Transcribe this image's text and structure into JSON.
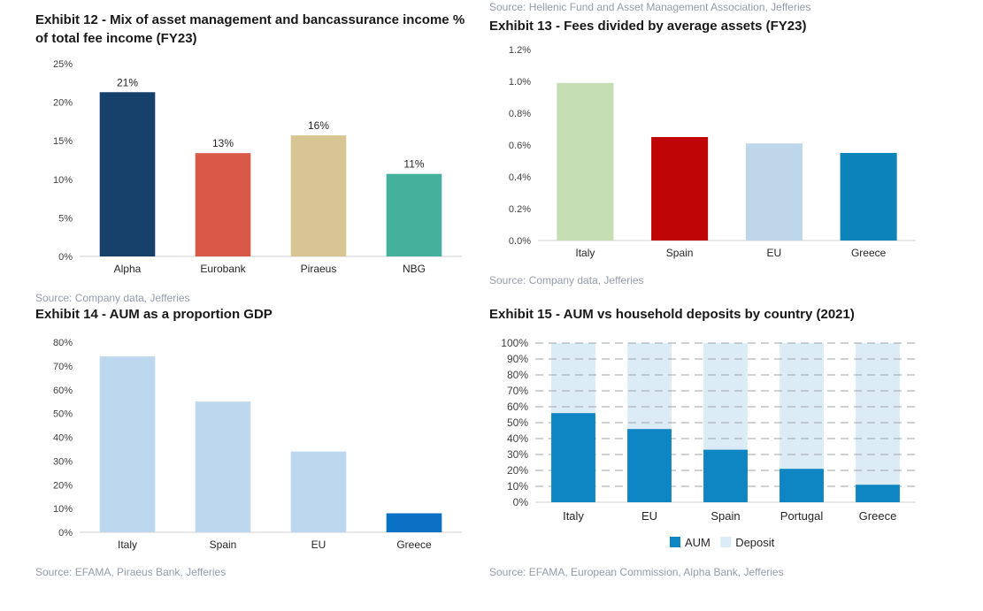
{
  "page": {
    "ex13_source_above": "Source: Hellenic Fund and Asset Management Association, Jefferies"
  },
  "chart_data": [
    {
      "id": "ex12",
      "type": "bar",
      "title": "Exhibit 12 - Mix of asset management and bancassurance income % of total fee income (FY23)",
      "source": "Source: Company data, Jefferies",
      "categories": [
        "Alpha",
        "Eurobank",
        "Piraeus",
        "NBG"
      ],
      "values": [
        21.3,
        13.4,
        15.7,
        10.7
      ],
      "value_labels": [
        "21%",
        "13%",
        "16%",
        "11%"
      ],
      "bar_colors": [
        "#17406B",
        "#D95848",
        "#D7C693",
        "#44B19C"
      ],
      "ylim": [
        0,
        25
      ],
      "yticks": [
        0,
        5,
        10,
        15,
        20,
        25
      ],
      "ytick_labels": [
        "0%",
        "5%",
        "10%",
        "15%",
        "20%",
        "25%"
      ],
      "gridlines": false,
      "legend_position": "none"
    },
    {
      "id": "ex13",
      "type": "bar",
      "title": "Exhibit 13 - Fees divided by average assets (FY23)",
      "source_above": "Source: Hellenic Fund and Asset Management Association, Jefferies",
      "source": "Source: Company data, Jefferies",
      "categories": [
        "Italy",
        "Spain",
        "EU",
        "Greece"
      ],
      "values": [
        0.99,
        0.65,
        0.61,
        0.55
      ],
      "bar_colors": [
        "#C5DEB3",
        "#C00507",
        "#BDD6EA",
        "#0C84BA"
      ],
      "ylim": [
        0,
        1.2
      ],
      "yticks": [
        0,
        0.2,
        0.4,
        0.6,
        0.8,
        1.0,
        1.2
      ],
      "ytick_labels": [
        "0.0%",
        "0.2%",
        "0.4%",
        "0.6%",
        "0.8%",
        "1.0%",
        "1.2%"
      ],
      "gridlines": false,
      "legend_position": "none"
    },
    {
      "id": "ex14",
      "type": "bar",
      "title": "Exhibit 14 - AUM as a proportion GDP",
      "source": "Source: EFAMA, Piraeus Bank, Jefferies",
      "categories": [
        "Italy",
        "Spain",
        "EU",
        "Greece"
      ],
      "values": [
        74,
        55,
        34,
        8
      ],
      "bar_colors": [
        "#BDD7EE",
        "#BDD7EE",
        "#BDD7EE",
        "#0A72C4"
      ],
      "ylim": [
        0,
        80
      ],
      "yticks": [
        0,
        10,
        20,
        30,
        40,
        50,
        60,
        70,
        80
      ],
      "ytick_labels": [
        "0%",
        "10%",
        "20%",
        "30%",
        "40%",
        "50%",
        "60%",
        "70%",
        "80%"
      ],
      "gridlines": false,
      "legend_position": "none"
    },
    {
      "id": "ex15",
      "type": "bar",
      "stacked": true,
      "title": "Exhibit 15 - AUM vs household deposits by country (2021)",
      "source": "Source: EFAMA, European Commission, Alpha Bank, Jefferies",
      "categories": [
        "Italy",
        "EU",
        "Spain",
        "Portugal",
        "Greece"
      ],
      "series": [
        {
          "name": "AUM",
          "color": "#0D86C3",
          "values": [
            56,
            46,
            33,
            21,
            11
          ]
        },
        {
          "name": "Deposit",
          "color": "#DCECF6",
          "values": [
            44,
            54,
            67,
            79,
            89
          ]
        }
      ],
      "ylim": [
        0,
        100
      ],
      "yticks": [
        0,
        10,
        20,
        30,
        40,
        50,
        60,
        70,
        80,
        90,
        100
      ],
      "ytick_labels": [
        "0%",
        "10%",
        "20%",
        "30%",
        "40%",
        "50%",
        "60%",
        "70%",
        "80%",
        "90%",
        "100%"
      ],
      "gridlines": true,
      "legend_position": "bottom",
      "legend": [
        "AUM",
        "Deposit"
      ]
    }
  ]
}
